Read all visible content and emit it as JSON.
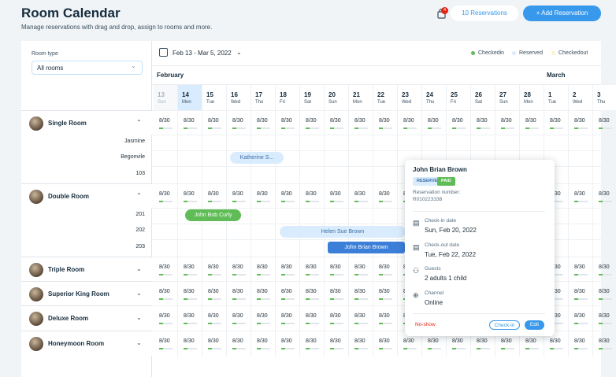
{
  "header": {
    "title": "Room Calendar",
    "subtitle": "Manage reservations with drag and drop, assign to rooms and more.",
    "notification_count": "4",
    "reservations_button": "10 Reservations",
    "add_button": "+ Add Reservation"
  },
  "filter": {
    "label": "Room type",
    "value": "All rooms"
  },
  "toolbar": {
    "date_range": "Feb 13 - Mar 5, 2022",
    "legend": [
      {
        "label": "Checkedin",
        "color": "#60bc57"
      },
      {
        "label": "Reserved",
        "color": "#d9ecfd"
      },
      {
        "label": "Checkedout",
        "color": "#fdf3c8"
      }
    ]
  },
  "months": [
    "February",
    "March"
  ],
  "days": [
    {
      "num": "13",
      "wd": "Sun"
    },
    {
      "num": "14",
      "wd": "Mon"
    },
    {
      "num": "15",
      "wd": "Tue"
    },
    {
      "num": "16",
      "wd": "Wed"
    },
    {
      "num": "17",
      "wd": "Thu"
    },
    {
      "num": "18",
      "wd": "Fri"
    },
    {
      "num": "19",
      "wd": "Sat"
    },
    {
      "num": "20",
      "wd": "Sun"
    },
    {
      "num": "21",
      "wd": "Mon"
    },
    {
      "num": "22",
      "wd": "Tue"
    },
    {
      "num": "23",
      "wd": "Wed"
    },
    {
      "num": "24",
      "wd": "Thu"
    },
    {
      "num": "25",
      "wd": "Fri"
    },
    {
      "num": "26",
      "wd": "Sat"
    },
    {
      "num": "27",
      "wd": "Sun"
    },
    {
      "num": "28",
      "wd": "Mon"
    },
    {
      "num": "1",
      "wd": "Tue"
    },
    {
      "num": "2",
      "wd": "Wed"
    },
    {
      "num": "3",
      "wd": "Thu"
    }
  ],
  "availability_value": "8/30",
  "availability_fill": 0.27,
  "rooms": [
    {
      "name": "Single Room",
      "expanded": true,
      "units": [
        "Jasmine",
        "Begonvile",
        "103"
      ]
    },
    {
      "name": "Double Room",
      "expanded": true,
      "units": [
        "201",
        "202",
        "203"
      ]
    },
    {
      "name": "Triple Room",
      "expanded": false
    },
    {
      "name": "Superior King Room",
      "expanded": false
    },
    {
      "name": "Deluxe Room",
      "expanded": false
    },
    {
      "name": "Honeymoon Room",
      "expanded": false
    }
  ],
  "bookings": [
    {
      "guest": "Katherine S...",
      "status": "reserved"
    },
    {
      "guest": "John Bob Curly",
      "status": "checkedin"
    },
    {
      "guest": "Helen Sue Brown",
      "status": "reserved"
    },
    {
      "guest": "John Brian Brown",
      "status": "selected"
    }
  ],
  "popup": {
    "guest": "John Brian Brown",
    "badge_status": "RESERVED",
    "badge_payment": "PAID",
    "reservation_label": "Reservation number:",
    "reservation_number": "R010223338",
    "checkin_label": "Check-in date",
    "checkin_value": "Sun, Feb 20, 2022",
    "checkout_label": "Check-out date",
    "checkout_value": "Tue, Feb 22, 2022",
    "guests_label": "Guests",
    "guests_value": "2 adults 1 child",
    "channel_label": "Channel",
    "channel_value": "Online",
    "noshow": "No-show",
    "checkin_button": "Check-in",
    "edit_button": "Edit"
  }
}
